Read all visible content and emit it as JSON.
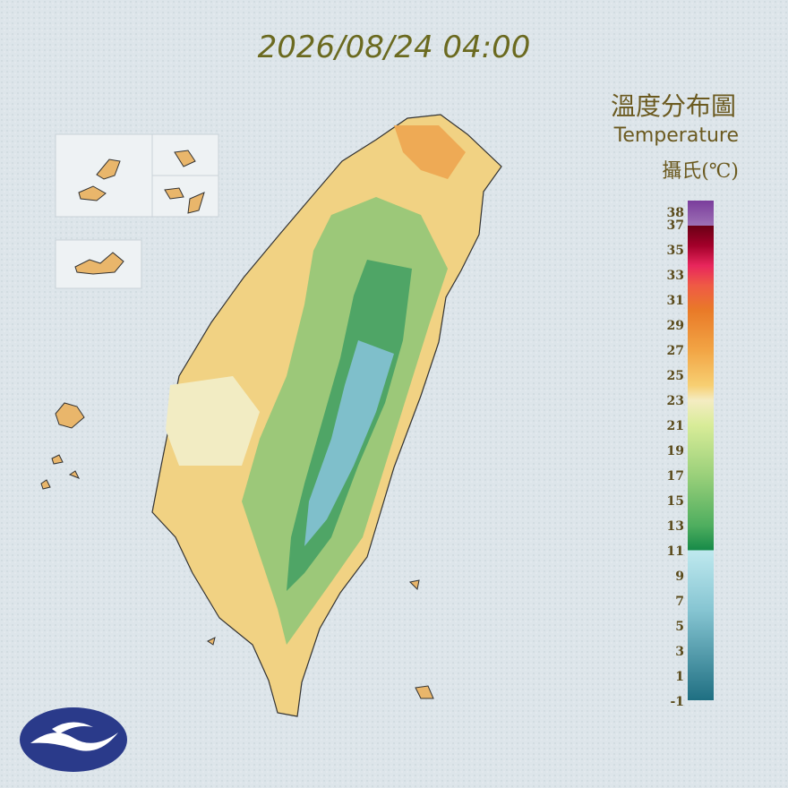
{
  "title": "2026/08/24 04:00",
  "legend": {
    "title_zh": "溫度分布圖",
    "title_en": "Temperature",
    "unit": "攝氏(℃)",
    "ticks": [
      38,
      37,
      35,
      33,
      31,
      29,
      27,
      25,
      23,
      21,
      19,
      17,
      15,
      13,
      11,
      9,
      7,
      5,
      3,
      1,
      -1
    ]
  }
}
